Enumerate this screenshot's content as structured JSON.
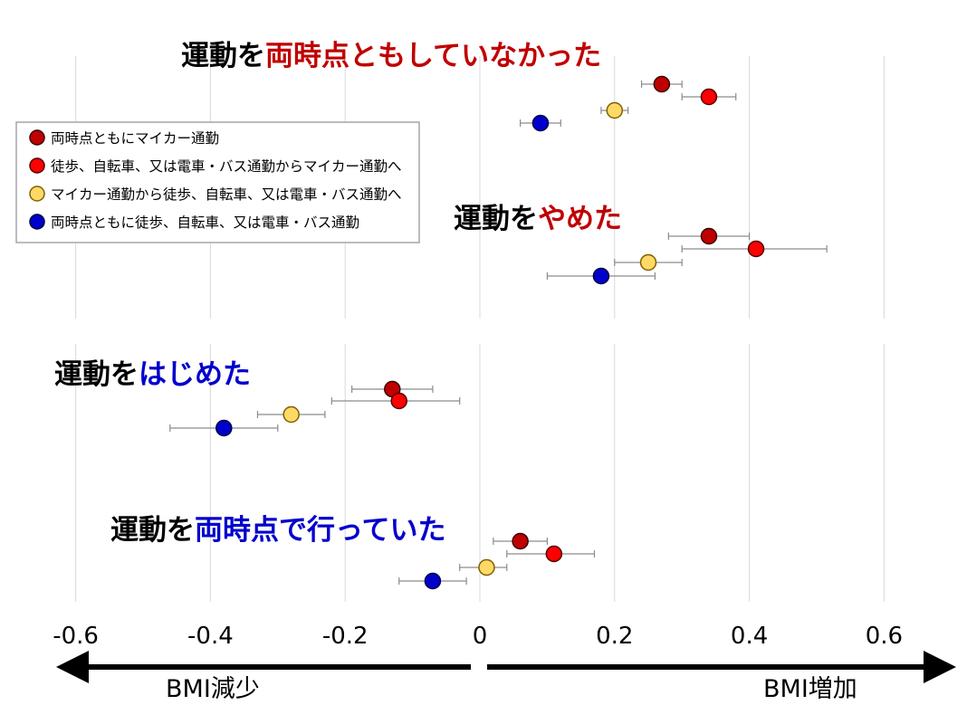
{
  "chart_data": {
    "type": "scatter",
    "subtype": "dot-plot-with-error-bars",
    "xlabel": "",
    "ylabel": "",
    "xlim": [
      -0.6,
      0.6
    ],
    "x_ticks": [
      "-0.6",
      "-0.4",
      "-0.2",
      "0",
      "0.2",
      "0.4",
      "0.6"
    ],
    "grid": "vertical",
    "direction_labels": {
      "left": "BMI減少",
      "right": "BMI増加"
    },
    "legend": {
      "placement": "top-left",
      "entries": [
        {
          "key": "both_car",
          "label": "両時点ともにマイカー通勤"
        },
        {
          "key": "to_car",
          "label": "徒歩、自転車、又は電車・バス通勤からマイカー通勤へ"
        },
        {
          "key": "from_car",
          "label": "マイカー通勤から徒歩、自転車、又は電車・バス通勤へ"
        },
        {
          "key": "both_active",
          "label": "両時点ともに徒歩、自転車、又は電車・バス通勤"
        }
      ]
    },
    "colors": {
      "both_car": "#c00000",
      "to_car": "#ff0000",
      "from_car": "#ffd966",
      "both_active": "#0000cc",
      "title_red": "#c00000",
      "title_blue": "#0000cc"
    },
    "groups": [
      {
        "title_black": "運動を",
        "title_colored": "両時点ともしていなかった",
        "title_color": "red",
        "points": [
          {
            "series": "both_car",
            "x": 0.27,
            "lo": 0.24,
            "hi": 0.3
          },
          {
            "series": "to_car",
            "x": 0.34,
            "lo": 0.3,
            "hi": 0.38
          },
          {
            "series": "from_car",
            "x": 0.2,
            "lo": 0.18,
            "hi": 0.22
          },
          {
            "series": "both_active",
            "x": 0.09,
            "lo": 0.06,
            "hi": 0.12
          }
        ]
      },
      {
        "title_black": "運動を",
        "title_colored": "やめた",
        "title_color": "red",
        "points": [
          {
            "series": "both_car",
            "x": 0.34,
            "lo": 0.28,
            "hi": 0.4
          },
          {
            "series": "to_car",
            "x": 0.41,
            "lo": 0.3,
            "hi": 0.515
          },
          {
            "series": "from_car",
            "x": 0.25,
            "lo": 0.2,
            "hi": 0.3
          },
          {
            "series": "both_active",
            "x": 0.18,
            "lo": 0.1,
            "hi": 0.26
          }
        ]
      },
      {
        "title_black": "運動を",
        "title_colored": "はじめた",
        "title_color": "blue",
        "points": [
          {
            "series": "both_car",
            "x": -0.13,
            "lo": -0.19,
            "hi": -0.07
          },
          {
            "series": "to_car",
            "x": -0.12,
            "lo": -0.22,
            "hi": -0.03
          },
          {
            "series": "from_car",
            "x": -0.28,
            "lo": -0.33,
            "hi": -0.23
          },
          {
            "series": "both_active",
            "x": -0.38,
            "lo": -0.46,
            "hi": -0.3
          }
        ]
      },
      {
        "title_black": "運動を",
        "title_colored": "両時点で行っていた",
        "title_color": "blue",
        "points": [
          {
            "series": "both_car",
            "x": 0.06,
            "lo": 0.02,
            "hi": 0.1
          },
          {
            "series": "to_car",
            "x": 0.11,
            "lo": 0.04,
            "hi": 0.17
          },
          {
            "series": "from_car",
            "x": 0.01,
            "lo": -0.03,
            "hi": 0.04
          },
          {
            "series": "both_active",
            "x": -0.07,
            "lo": -0.12,
            "hi": -0.02
          }
        ]
      }
    ]
  }
}
